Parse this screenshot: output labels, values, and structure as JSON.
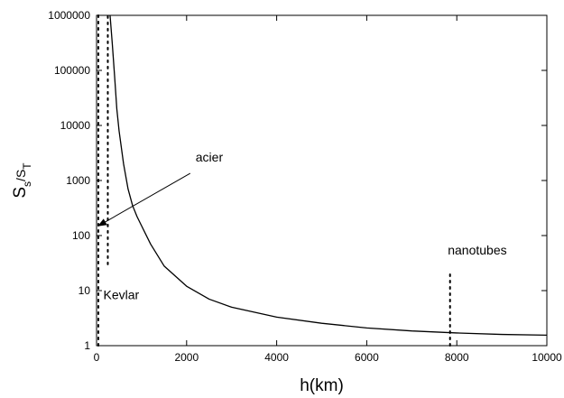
{
  "chart_data": {
    "type": "line",
    "title": "",
    "xlabel": "h(km)",
    "ylabel": {
      "base": "S",
      "sub1": "s",
      "slash": "/S",
      "sub2": "T"
    },
    "xlim": [
      0,
      10000
    ],
    "ylim": [
      1,
      1000000
    ],
    "yscale": "log",
    "grid": false,
    "legend": "none",
    "x_ticks": [
      0,
      2000,
      4000,
      6000,
      8000,
      10000
    ],
    "x_tick_labels": [
      "0",
      "2000",
      "4000",
      "6000",
      "8000",
      "10000"
    ],
    "y_ticks": [
      1,
      10,
      100,
      1000,
      10000,
      100000,
      1000000
    ],
    "y_tick_labels": [
      "1",
      "10",
      "100",
      "1000",
      "10000",
      "100000",
      "1000000"
    ],
    "series": [
      {
        "x": [
          300,
          350,
          400,
          450,
          500,
          600,
          700,
          800,
          900,
          1000,
          1200,
          1500,
          2000,
          2500,
          3000,
          4000,
          5000,
          6000,
          7000,
          8000,
          9000,
          10000
        ],
        "values": [
          1000000,
          300000,
          80000,
          20000,
          8000,
          2000,
          700,
          350,
          220,
          150,
          70,
          28,
          12,
          7,
          5,
          3.3,
          2.55,
          2.1,
          1.85,
          1.7,
          1.6,
          1.55
        ]
      }
    ],
    "reference_lines": [
      {
        "x": 40,
        "y_from": 1,
        "y_to": 1000000
      },
      {
        "x": 250,
        "y_from": 30,
        "y_to": 1000000
      },
      {
        "x": 7850,
        "y_from": 1,
        "y_to": 20
      }
    ],
    "annotations": [
      {
        "text": "acier",
        "x": 2200,
        "y": 2200,
        "arrow_to": {
          "x": 40,
          "y": 150
        }
      },
      {
        "text": "Kevlar",
        "x": 150,
        "y": 7,
        "arrow_to": null
      },
      {
        "text": "nanotubes",
        "x": 7800,
        "y": 45,
        "arrow_to": null
      }
    ]
  },
  "colors": {
    "line": "#000000",
    "axis": "#000000",
    "background": "#ffffff"
  }
}
